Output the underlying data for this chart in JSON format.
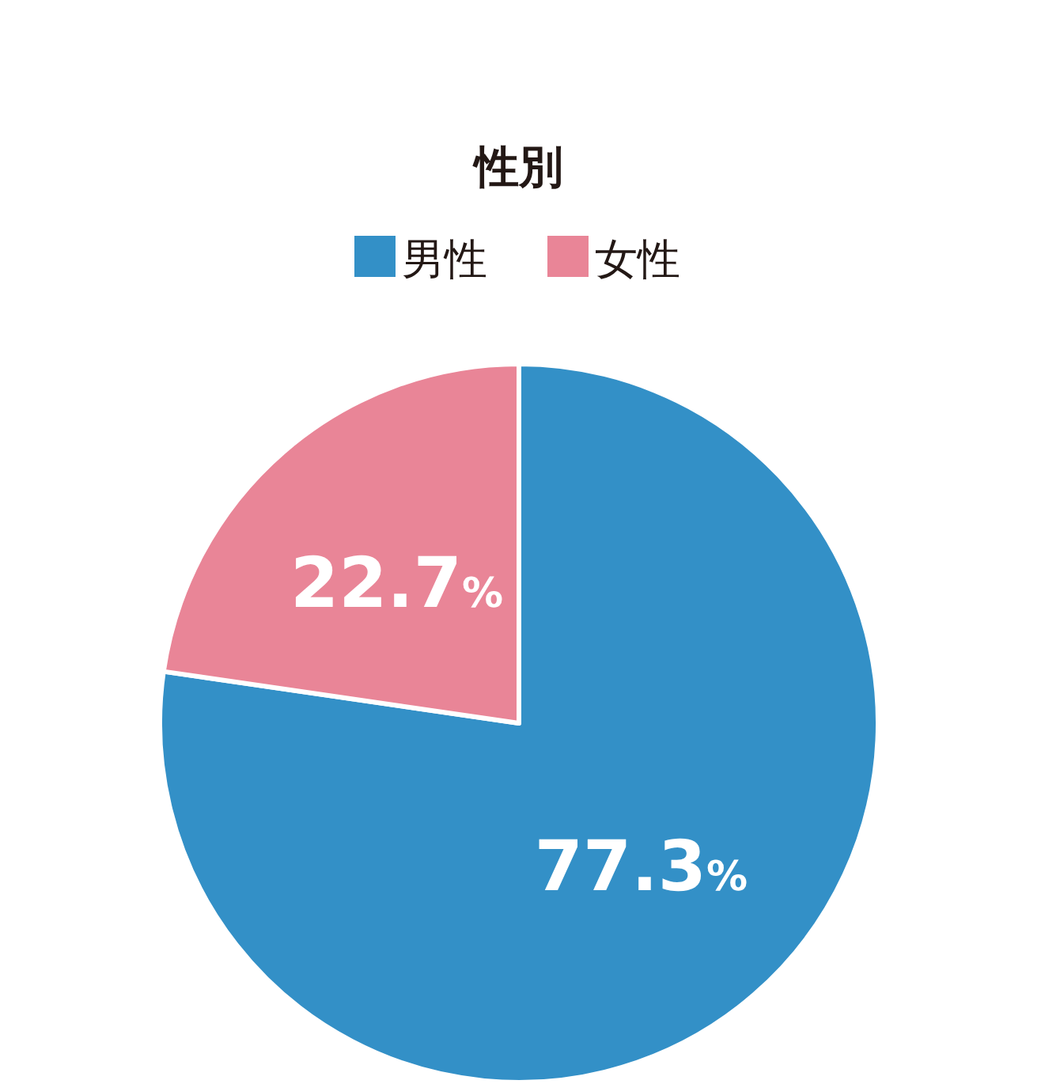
{
  "chart_data": {
    "type": "pie",
    "title": "性別",
    "categories": [
      "男性",
      "女性"
    ],
    "values": [
      77.3,
      22.7
    ],
    "colors": [
      "#3390c7",
      "#e98597"
    ],
    "legend": "top",
    "value_labels": [
      "77.3%",
      "22.7%"
    ]
  }
}
